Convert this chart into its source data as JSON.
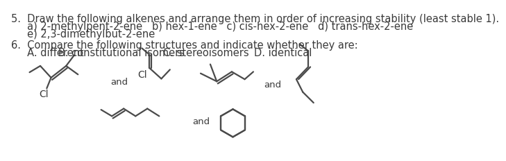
{
  "background": "#ffffff",
  "text_color": "#3a3a3a",
  "line_color": "#4a4a4a",
  "font_size": 10.5,
  "lw": 1.6,
  "text": {
    "t5_line1": "5.  Draw the following alkenes and arrange them in order of increasing stability (least stable 1).",
    "t5_line2": "     a) 2-methylpent-2-ene   b) hex-1-ene   c) cis-hex-2-ene   d) trans-hex-2-ene",
    "t5_line3": "     e) 2,3-dimethylbut-2-ene",
    "t6_line1": "6.  Compare the following structures and indicate whether they are:",
    "t6_line2a": "     A. different",
    "t6_line2b": "B. constitutional isomers",
    "t6_line2c": "C. stereoisomers",
    "t6_line2d": "D. identical"
  }
}
